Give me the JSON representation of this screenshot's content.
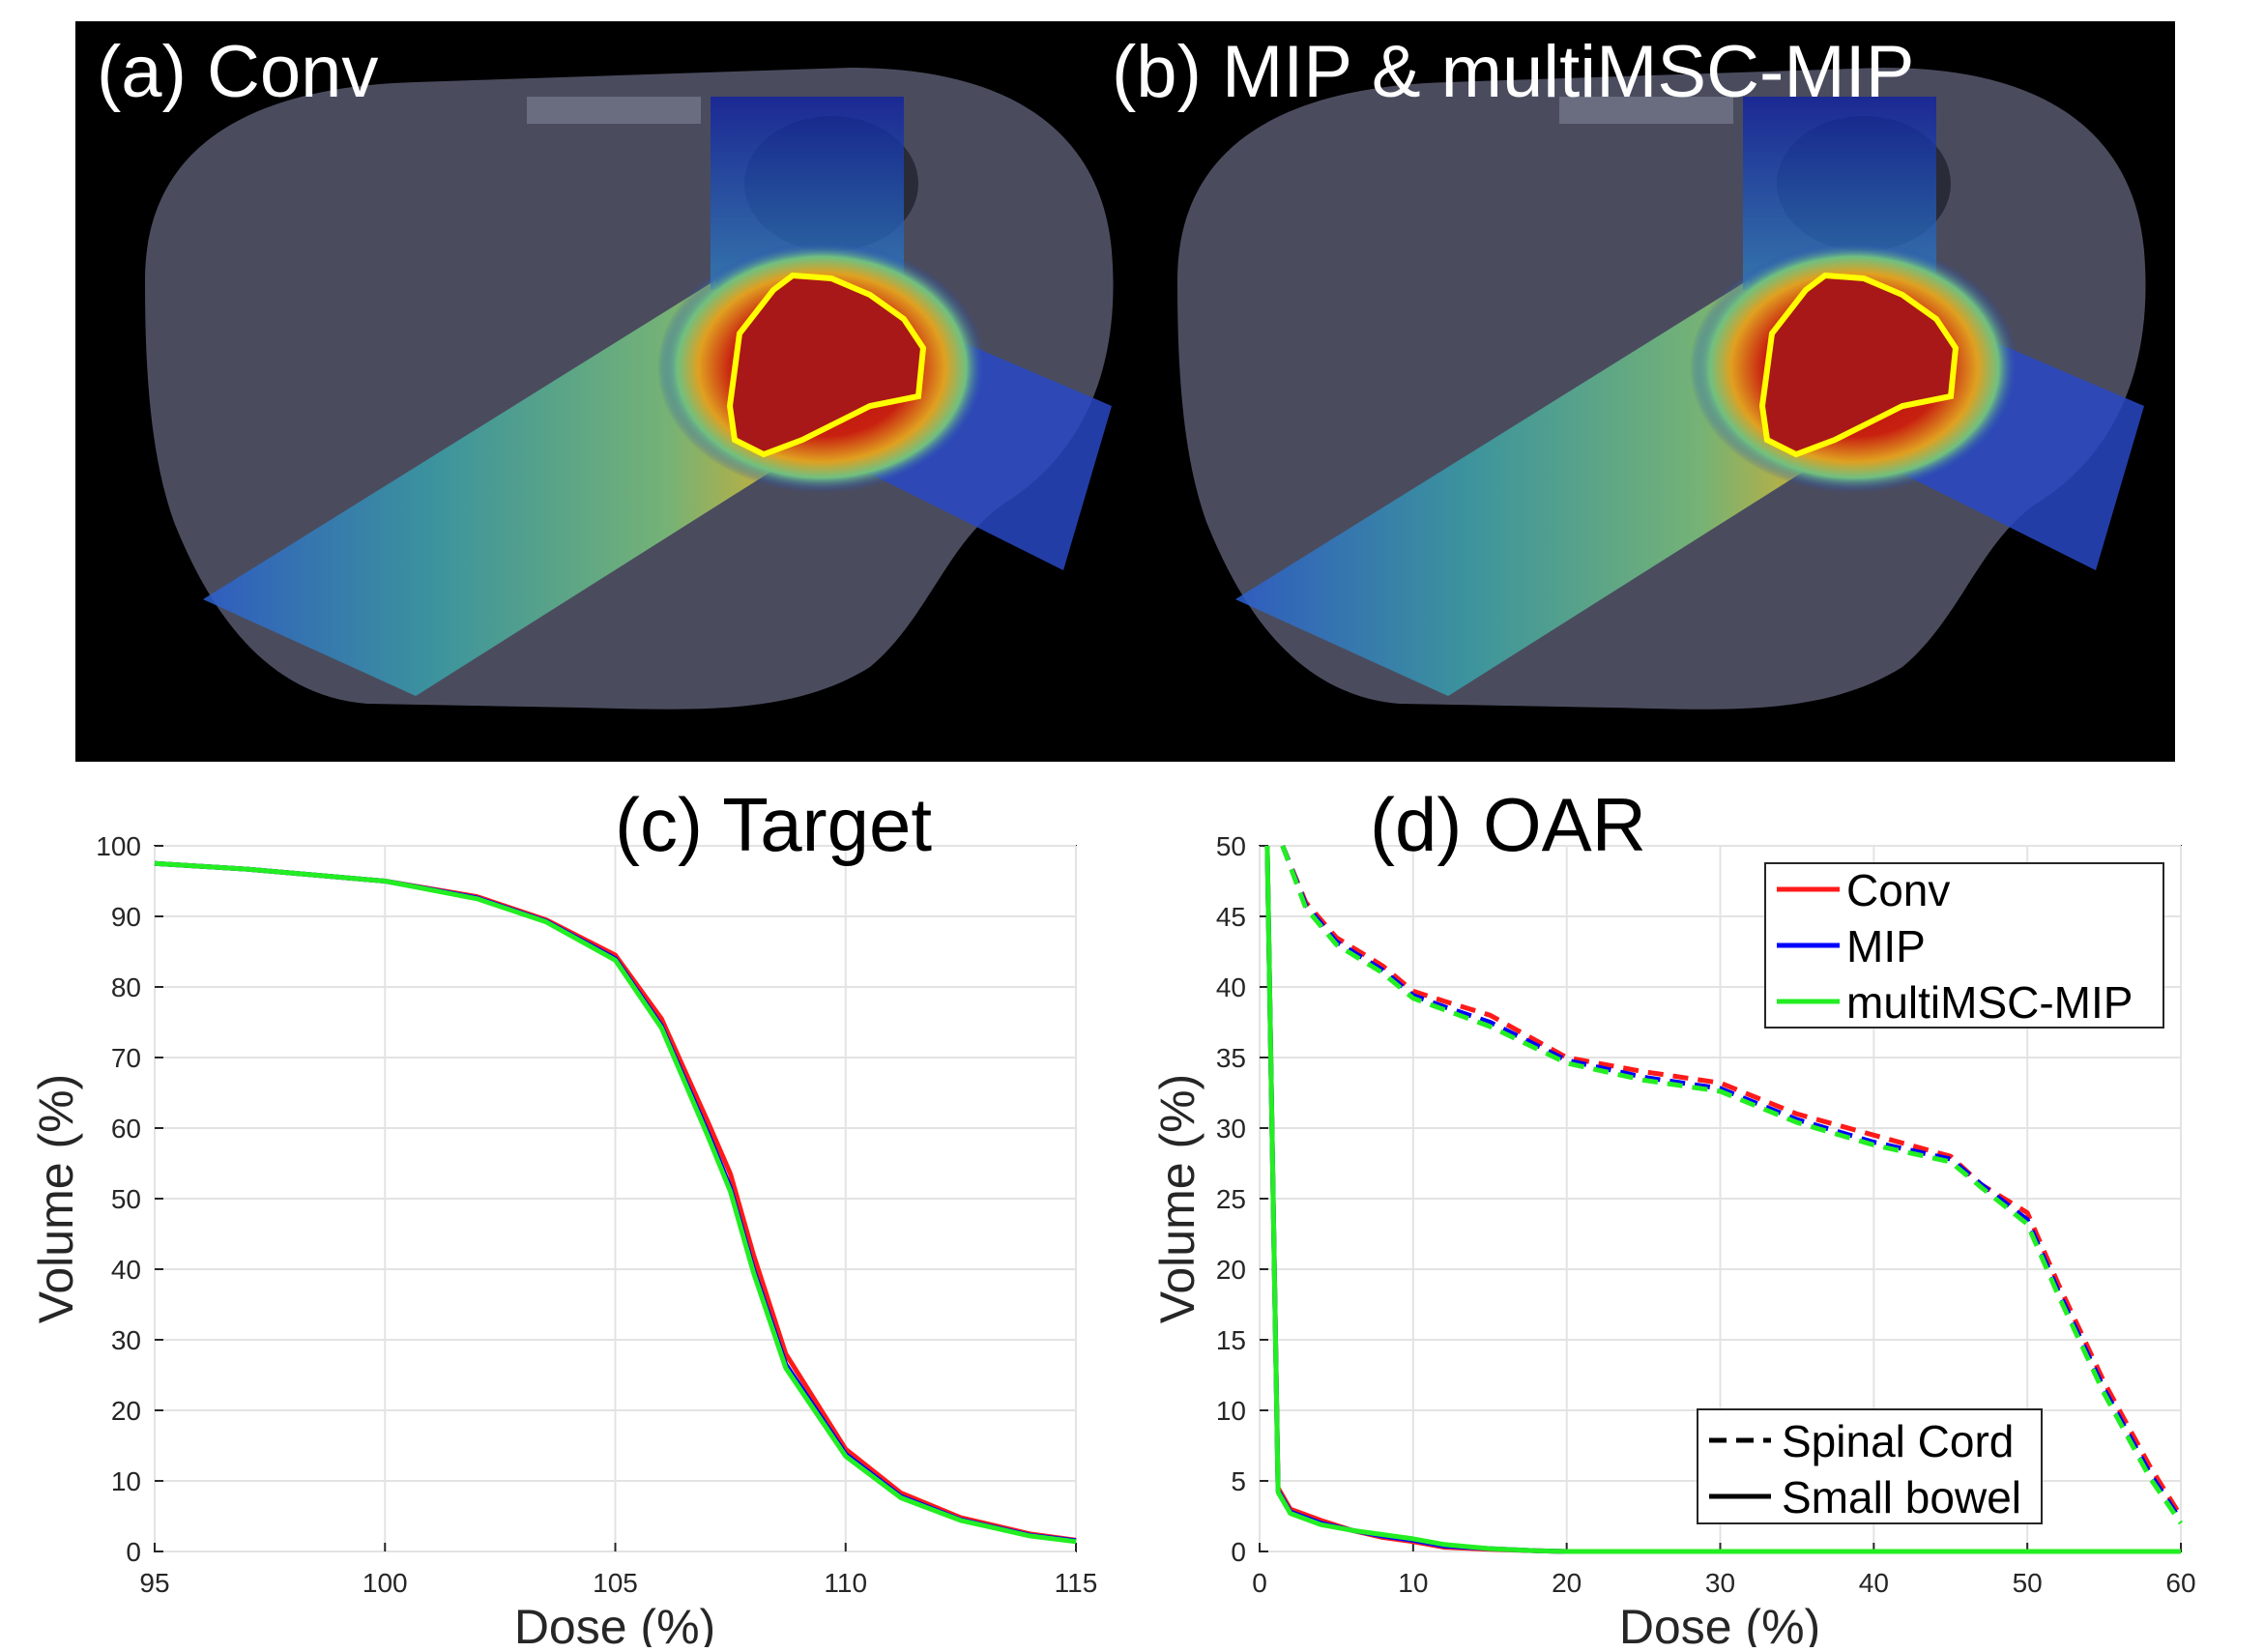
{
  "panels": {
    "a": {
      "label": "(a) Conv"
    },
    "b": {
      "label": "(b) MIP & multiMSC-MIP"
    }
  },
  "colors": {
    "conv": "#ff1a1a",
    "mip": "#0000ff",
    "multimsc": "#22ee22",
    "contour": "#ffff00",
    "background": "#000000"
  },
  "chart_data": [
    {
      "type": "line",
      "title": "(c) Target",
      "xlabel": "Dose (%)",
      "ylabel": "Volume (%)",
      "xlim": [
        95,
        115
      ],
      "ylim": [
        0,
        100
      ],
      "xticks": [
        95,
        100,
        105,
        110,
        115
      ],
      "yticks": [
        0,
        10,
        20,
        30,
        40,
        50,
        60,
        70,
        80,
        90,
        100
      ],
      "grid": true,
      "series": [
        {
          "name": "Conv",
          "color": "#ff1a1a",
          "dash": "solid",
          "x": [
            95,
            97,
            100,
            102,
            103.5,
            105,
            106,
            107,
            107.5,
            108,
            108.7,
            110,
            111.2,
            112.5,
            114,
            115
          ],
          "y": [
            97.5,
            96.7,
            95,
            92.8,
            89.5,
            84.5,
            75.5,
            61,
            53.5,
            42,
            28,
            14.5,
            8.3,
            4.8,
            2.5,
            1.6
          ]
        },
        {
          "name": "MIP",
          "color": "#0000ff",
          "dash": "solid",
          "x": [
            95,
            97,
            100,
            102,
            103.5,
            105,
            106,
            107,
            107.5,
            108,
            108.7,
            110,
            111.2,
            112.5,
            114,
            115
          ],
          "y": [
            97.5,
            96.7,
            95,
            92.6,
            89.3,
            84,
            74.5,
            59.5,
            51.5,
            40,
            26.5,
            13.8,
            7.8,
            4.5,
            2.3,
            1.5
          ]
        },
        {
          "name": "multiMSC-MIP",
          "color": "#22ee22",
          "dash": "solid",
          "x": [
            95,
            97,
            100,
            102,
            103.5,
            105,
            106,
            107,
            107.5,
            108,
            108.7,
            110,
            111.2,
            112.5,
            114,
            115
          ],
          "y": [
            97.5,
            96.7,
            95,
            92.5,
            89.2,
            83.8,
            74.2,
            59,
            51,
            39.5,
            26,
            13.5,
            7.6,
            4.4,
            2.2,
            1.4
          ]
        }
      ]
    },
    {
      "type": "line",
      "title": "(d) OAR",
      "xlabel": "Dose (%)",
      "ylabel": "Volume (%)",
      "xlim": [
        0,
        60
      ],
      "ylim": [
        0,
        50
      ],
      "xticks": [
        0,
        10,
        20,
        30,
        40,
        50,
        60
      ],
      "yticks": [
        0,
        5,
        10,
        15,
        20,
        25,
        30,
        35,
        40,
        45,
        50
      ],
      "grid": true,
      "legend": {
        "placement": "top-right",
        "entries": [
          {
            "name": "Conv",
            "color": "#ff1a1a"
          },
          {
            "name": "MIP",
            "color": "#0000ff"
          },
          {
            "name": "multiMSC-MIP",
            "color": "#22ee22"
          }
        ]
      },
      "style_legend": {
        "placement": "bottom-right",
        "entries": [
          {
            "name": "Spinal Cord",
            "dash": "dashed"
          },
          {
            "name": "Small bowel",
            "dash": "solid"
          }
        ]
      },
      "series": [
        {
          "name": "Conv",
          "structure": "Spinal Cord",
          "color": "#ff1a1a",
          "dash": "dashed",
          "x": [
            1.5,
            3,
            5,
            8,
            10,
            12,
            15,
            20,
            25,
            30,
            35,
            40,
            45,
            47,
            50,
            52,
            55,
            58,
            60
          ],
          "y": [
            50,
            46,
            43.5,
            41.5,
            39.7,
            39,
            38,
            35,
            34,
            33.2,
            31,
            29.5,
            28,
            26,
            24,
            19,
            12,
            6,
            2.5
          ]
        },
        {
          "name": "MIP",
          "structure": "Spinal Cord",
          "color": "#0000ff",
          "dash": "dashed",
          "x": [
            1.5,
            3,
            5,
            8,
            10,
            12,
            15,
            20,
            25,
            30,
            35,
            40,
            45,
            47,
            50,
            52,
            55,
            58,
            60
          ],
          "y": [
            50,
            45.8,
            43.2,
            41.2,
            39.4,
            38.6,
            37.5,
            34.8,
            33.6,
            32.8,
            30.6,
            29,
            27.8,
            26,
            23.5,
            18.5,
            11.5,
            5.5,
            2.2
          ]
        },
        {
          "name": "multiMSC-MIP",
          "structure": "Spinal Cord",
          "color": "#22ee22",
          "dash": "dashed",
          "x": [
            1.5,
            3,
            5,
            8,
            10,
            12,
            15,
            20,
            25,
            30,
            35,
            40,
            45,
            47,
            50,
            52,
            55,
            58,
            60
          ],
          "y": [
            50,
            45.6,
            43,
            41,
            39.2,
            38.4,
            37.2,
            34.6,
            33.4,
            32.6,
            30.4,
            28.8,
            27.6,
            25.8,
            23.2,
            18.2,
            11.2,
            5.2,
            2
          ]
        },
        {
          "name": "Conv",
          "structure": "Small bowel",
          "color": "#ff1a1a",
          "dash": "solid",
          "x": [
            0.5,
            1.2,
            2,
            4,
            6,
            8,
            10,
            12,
            15,
            18,
            20,
            30,
            40,
            50,
            60
          ],
          "y": [
            50,
            4.5,
            3,
            2.2,
            1.5,
            1,
            0.7,
            0.3,
            0.15,
            0.05,
            0,
            0,
            0,
            0,
            0
          ]
        },
        {
          "name": "MIP",
          "structure": "Small bowel",
          "color": "#0000ff",
          "dash": "solid",
          "x": [
            0.5,
            1.2,
            2,
            4,
            6,
            8,
            10,
            12,
            15,
            18,
            20,
            30,
            40,
            50,
            60
          ],
          "y": [
            50,
            4.3,
            2.8,
            2,
            1.5,
            1.1,
            0.8,
            0.4,
            0.2,
            0.05,
            0,
            0,
            0,
            0,
            0
          ]
        },
        {
          "name": "multiMSC-MIP",
          "structure": "Small bowel",
          "color": "#22ee22",
          "dash": "solid",
          "x": [
            0.5,
            1.2,
            2,
            4,
            6,
            8,
            10,
            12,
            15,
            18,
            20,
            30,
            40,
            50,
            60
          ],
          "y": [
            50,
            4.2,
            2.7,
            1.9,
            1.5,
            1.2,
            0.9,
            0.5,
            0.2,
            0.05,
            0,
            0,
            0,
            0,
            0
          ]
        }
      ]
    }
  ]
}
